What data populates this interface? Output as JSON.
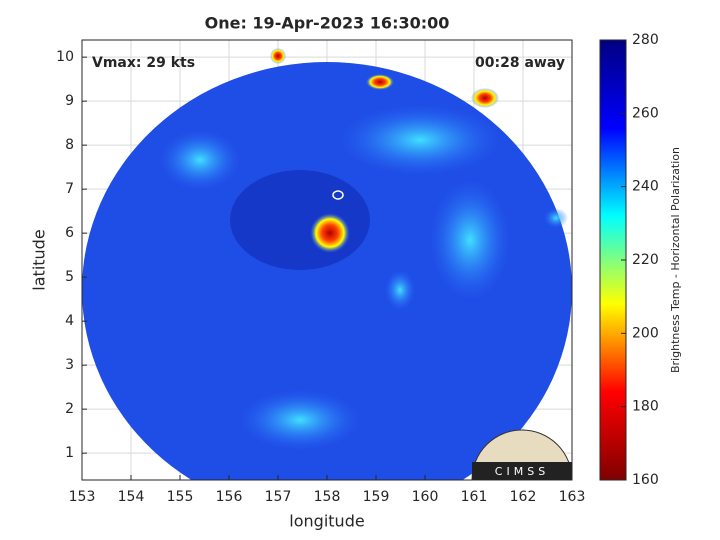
{
  "chart_data": {
    "type": "heatmap",
    "title": "One: 19-Apr-2023 16:30:00",
    "xlabel": "longitude",
    "ylabel": "latitude",
    "xlim": [
      153,
      163
    ],
    "xticks": [
      153,
      154,
      155,
      156,
      157,
      158,
      159,
      160,
      161,
      162,
      163
    ],
    "ylim": [
      0.39,
      10.39
    ],
    "yticks": [
      1,
      2,
      3,
      4,
      5,
      6,
      7,
      8,
      9,
      10
    ],
    "grid": true,
    "annotations": [
      "Vmax: 29 kts",
      "00:28 away"
    ],
    "logo": "CIMSS",
    "colorbar": {
      "label": "Brightness Temp - Horizontal Polarization",
      "lim": [
        160,
        280
      ],
      "ticks": [
        160,
        180,
        200,
        220,
        240,
        260,
        280
      ],
      "colors": [
        "#800000",
        "#ff0000",
        "#ffff00",
        "#00ffff",
        "#0000ff",
        "#000080"
      ]
    }
  }
}
